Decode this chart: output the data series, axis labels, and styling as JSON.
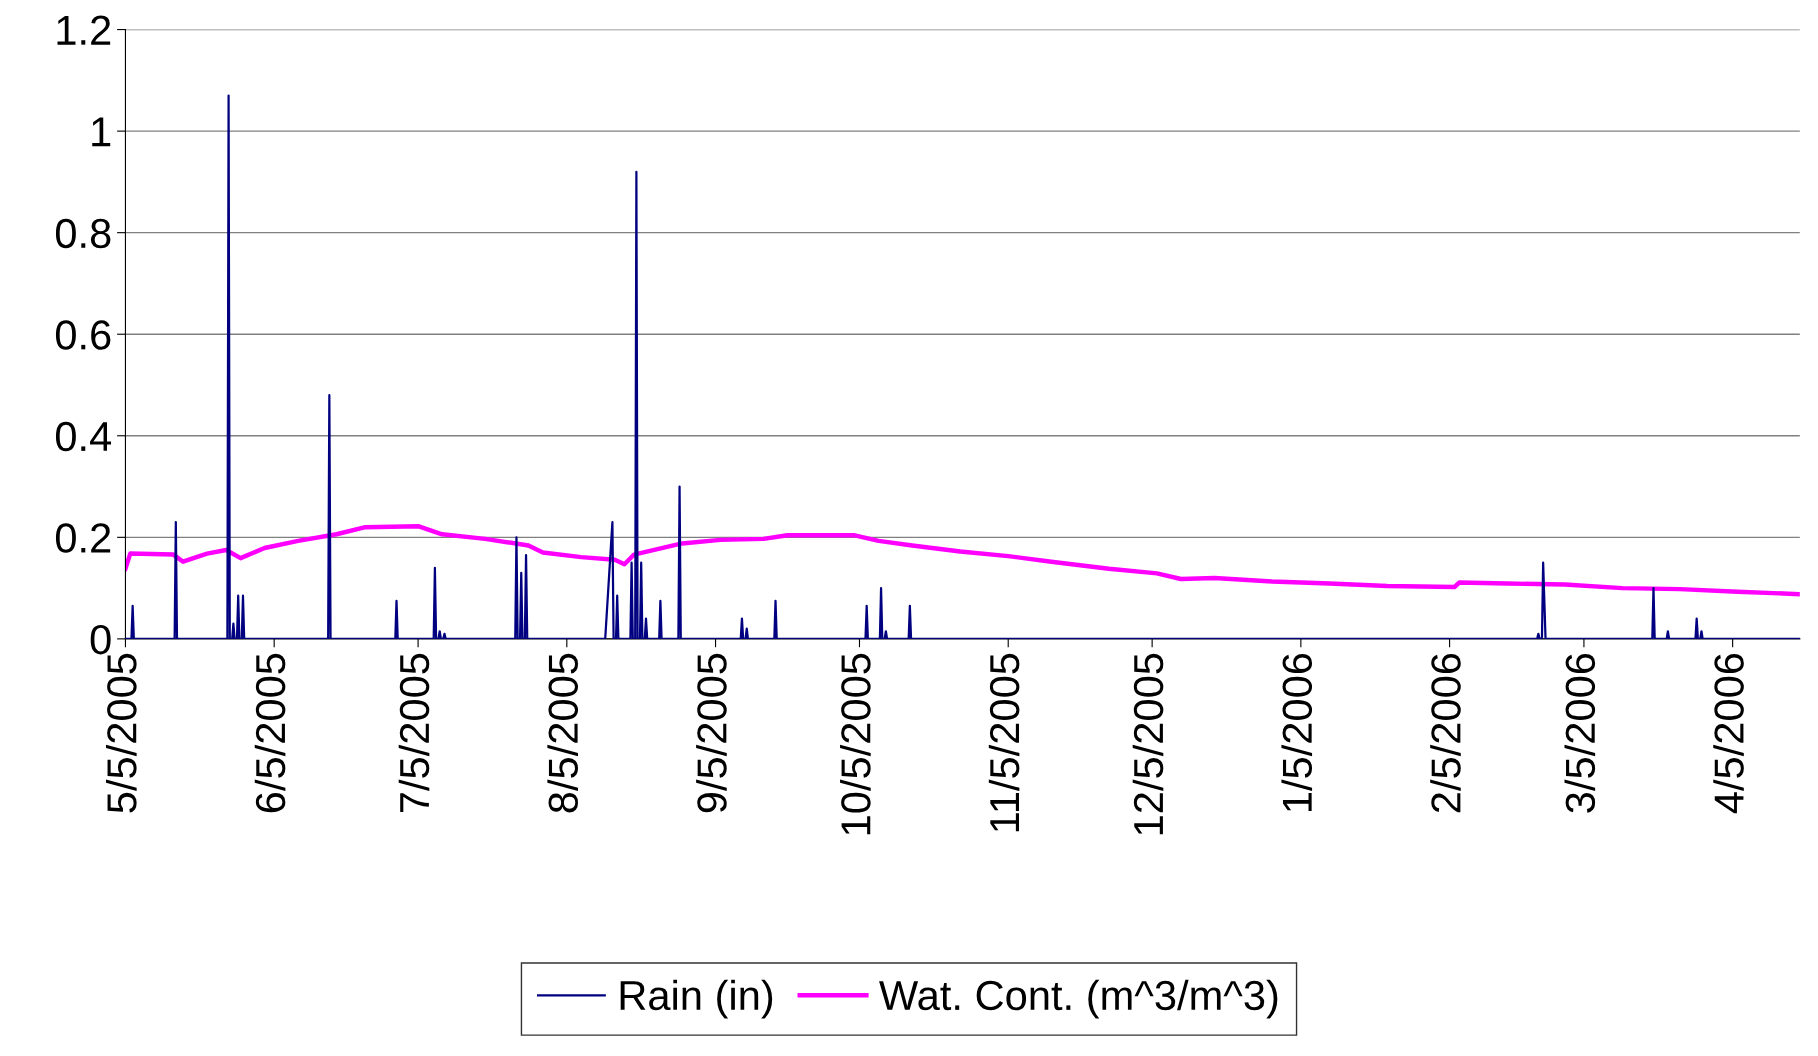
{
  "chart_data": {
    "type": "line",
    "xlim": [
      "2005-05-05",
      "2006-04-19"
    ],
    "xticks": [
      {
        "value": "2005-05-05",
        "label": "5/5/2005"
      },
      {
        "value": "2005-06-05",
        "label": "6/5/2005"
      },
      {
        "value": "2005-07-05",
        "label": "7/5/2005"
      },
      {
        "value": "2005-08-05",
        "label": "8/5/2005"
      },
      {
        "value": "2005-09-05",
        "label": "9/5/2005"
      },
      {
        "value": "2005-10-05",
        "label": "10/5/2005"
      },
      {
        "value": "2005-11-05",
        "label": "11/5/2005"
      },
      {
        "value": "2005-12-05",
        "label": "12/5/2005"
      },
      {
        "value": "2006-01-05",
        "label": "1/5/2006"
      },
      {
        "value": "2006-02-05",
        "label": "2/5/2006"
      },
      {
        "value": "2006-03-05",
        "label": "3/5/2006"
      },
      {
        "value": "2006-04-05",
        "label": "4/5/2006"
      }
    ],
    "ylim": [
      0,
      1.2
    ],
    "yticks": [
      0,
      0.2,
      0.4,
      0.6,
      0.8,
      1,
      1.2
    ],
    "grid": "y",
    "legend": "bottom",
    "marker": "none",
    "line_style": "solid",
    "series": [
      {
        "name": "Rain (in)",
        "color": "#000080",
        "x": [
          "2005-05-05T00:00",
          "2005-05-06T06:00",
          "2005-05-06T12:00",
          "2005-05-06T18:00",
          "2005-05-15T06:00",
          "2005-05-15T12:00",
          "2005-05-15T18:00",
          "2005-05-26T06:00",
          "2005-05-26T12:00",
          "2005-05-26T18:00",
          "2005-05-27T06:00",
          "2005-05-27T12:00",
          "2005-05-27T18:00",
          "2005-05-28T06:00",
          "2005-05-28T12:00",
          "2005-05-28T18:00",
          "2005-05-29T06:00",
          "2005-05-29T12:00",
          "2005-05-29T18:00",
          "2005-06-16T06:00",
          "2005-06-16T12:00",
          "2005-06-16T18:00",
          "2005-06-30T06:00",
          "2005-06-30T12:00",
          "2005-06-30T18:00",
          "2005-07-08T06:00",
          "2005-07-08T12:00",
          "2005-07-08T18:00",
          "2005-07-09T06:00",
          "2005-07-09T12:00",
          "2005-07-09T18:00",
          "2005-07-10T06:00",
          "2005-07-10T12:00",
          "2005-07-10T18:00",
          "2005-07-25T06:00",
          "2005-07-25T12:00",
          "2005-07-25T18:00",
          "2005-07-26T06:00",
          "2005-07-26T12:00",
          "2005-07-26T18:00",
          "2005-07-27T06:00",
          "2005-07-27T12:00",
          "2005-07-27T18:00",
          "2005-08-13T00:00",
          "2005-08-14T12:00",
          "2005-08-14T18:00",
          "2005-08-15T06:00",
          "2005-08-15T12:00",
          "2005-08-15T18:00",
          "2005-08-18T06:00",
          "2005-08-18T12:00",
          "2005-08-18T18:00",
          "2005-08-19T06:00",
          "2005-08-19T12:00",
          "2005-08-19T18:00",
          "2005-08-20T06:00",
          "2005-08-20T12:00",
          "2005-08-20T18:00",
          "2005-08-21T06:00",
          "2005-08-21T12:00",
          "2005-08-21T18:00",
          "2005-08-24T06:00",
          "2005-08-24T12:00",
          "2005-08-24T18:00",
          "2005-08-28T06:00",
          "2005-08-28T12:00",
          "2005-08-28T18:00",
          "2005-09-10T06:00",
          "2005-09-10T12:00",
          "2005-09-10T18:00",
          "2005-09-11T06:00",
          "2005-09-11T12:00",
          "2005-09-11T18:00",
          "2005-09-17T06:00",
          "2005-09-17T12:00",
          "2005-09-17T18:00",
          "2005-10-06T06:00",
          "2005-10-06T12:00",
          "2005-10-06T18:00",
          "2005-10-09T06:00",
          "2005-10-09T12:00",
          "2005-10-09T18:00",
          "2005-10-10T06:00",
          "2005-10-10T12:00",
          "2005-10-10T18:00",
          "2005-10-15T06:00",
          "2005-10-15T12:00",
          "2005-10-15T18:00",
          "2006-02-23T06:00",
          "2006-02-23T12:00",
          "2006-02-23T18:00",
          "2006-02-24T06:00",
          "2006-02-24T12:00",
          "2006-02-25T00:00",
          "2006-03-19T06:00",
          "2006-03-19T12:00",
          "2006-03-19T18:00",
          "2006-03-22T06:00",
          "2006-03-22T12:00",
          "2006-03-22T18:00",
          "2006-03-28T06:00",
          "2006-03-28T12:00",
          "2006-03-28T18:00",
          "2006-03-29T06:00",
          "2006-03-29T12:00",
          "2006-03-29T18:00",
          "2006-04-19T00:00"
        ],
        "values": [
          0,
          0,
          0.065,
          0,
          0,
          0.23,
          0,
          0,
          1.07,
          0,
          0,
          0.03,
          0,
          0,
          0.085,
          0,
          0,
          0.085,
          0,
          0,
          0.48,
          0,
          0,
          0.075,
          0,
          0,
          0.14,
          0,
          0,
          0.015,
          0,
          0,
          0.01,
          0,
          0,
          0.2,
          0,
          0,
          0.13,
          0,
          0,
          0.165,
          0,
          0,
          0.23,
          0,
          0,
          0.085,
          0,
          0,
          0.15,
          0,
          0,
          0.92,
          0,
          0,
          0.15,
          0,
          0,
          0.04,
          0,
          0,
          0.075,
          0,
          0,
          0.3,
          0,
          0,
          0.04,
          0,
          0,
          0.02,
          0,
          0,
          0.075,
          0,
          0,
          0.065,
          0,
          0,
          0.1,
          0,
          0,
          0.015,
          0,
          0,
          0.065,
          0,
          0,
          0.01,
          0,
          0,
          0.15,
          0,
          0,
          0.1,
          0,
          0,
          0.015,
          0,
          0,
          0.04,
          0,
          0,
          0.015,
          0,
          0
        ]
      },
      {
        "name": "Wat. Cont. (m^3/m^3)",
        "color": "#ff00ff",
        "x": [
          "2005-05-05",
          "2005-05-06",
          "2005-05-15",
          "2005-05-17",
          "2005-05-22",
          "2005-05-26",
          "2005-05-29",
          "2005-06-03",
          "2005-06-10",
          "2005-06-18",
          "2005-06-24",
          "2005-07-05",
          "2005-07-10",
          "2005-07-19",
          "2005-07-28",
          "2005-07-31",
          "2005-08-08",
          "2005-08-15",
          "2005-08-17",
          "2005-08-19",
          "2005-08-29",
          "2005-09-06",
          "2005-09-15",
          "2005-09-20",
          "2005-10-04",
          "2005-10-09",
          "2005-10-16",
          "2005-10-26",
          "2005-11-05",
          "2005-11-14",
          "2005-11-26",
          "2005-12-06",
          "2005-12-11",
          "2005-12-18",
          "2005-12-30",
          "2006-01-11",
          "2006-01-23",
          "2006-02-06",
          "2006-02-07",
          "2006-02-17",
          "2006-03-01",
          "2006-03-13",
          "2006-03-25",
          "2006-04-06",
          "2006-04-19"
        ],
        "values": [
          0.138,
          0.168,
          0.166,
          0.152,
          0.168,
          0.175,
          0.159,
          0.179,
          0.193,
          0.206,
          0.22,
          0.222,
          0.206,
          0.197,
          0.184,
          0.17,
          0.161,
          0.156,
          0.147,
          0.166,
          0.188,
          0.195,
          0.197,
          0.204,
          0.204,
          0.193,
          0.184,
          0.172,
          0.163,
          0.152,
          0.138,
          0.129,
          0.118,
          0.12,
          0.113,
          0.109,
          0.104,
          0.102,
          0.111,
          0.109,
          0.107,
          0.1,
          0.098,
          0.093,
          0.088
        ]
      }
    ]
  }
}
